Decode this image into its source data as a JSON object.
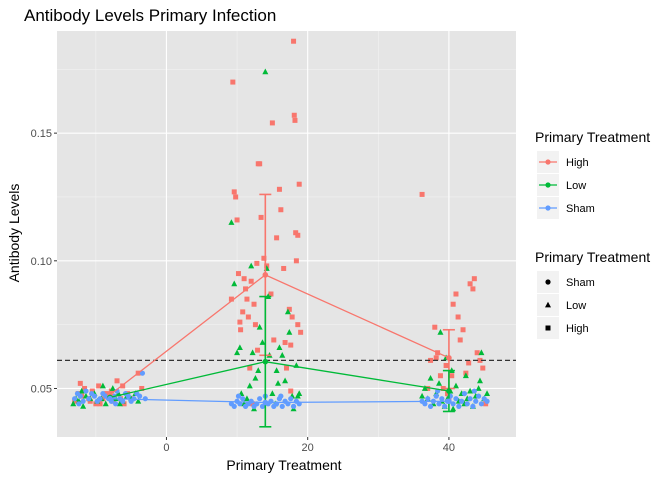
{
  "chart_data": {
    "type": "scatter",
    "title": "Antibody Levels Primary Infection",
    "xlabel": "Primary Treatment",
    "ylabel": "Antibody Levels",
    "xlim": [
      -15.5,
      49.5
    ],
    "ylim": [
      0.031,
      0.19
    ],
    "x_ticks": [
      0,
      20,
      40
    ],
    "y_ticks": [
      0.05,
      0.1,
      0.15
    ],
    "y_tick_labels": [
      "0.05",
      "0.10",
      "0.15"
    ],
    "grid": true,
    "background": "#e5e5e5",
    "reference_line": {
      "y": 0.061,
      "style": "dashed",
      "color": "#333333"
    },
    "legend_color": {
      "title": "Primary Treatment",
      "position": "right",
      "entries": [
        {
          "label": "High",
          "color": "#f8766d"
        },
        {
          "label": "Low",
          "color": "#00ba38"
        },
        {
          "label": "Sham",
          "color": "#619cff"
        }
      ]
    },
    "legend_shape": {
      "title": "Primary Treatment",
      "position": "right",
      "entries": [
        {
          "label": "Sham",
          "shape": "circle"
        },
        {
          "label": "Low",
          "shape": "triangle"
        },
        {
          "label": "High",
          "shape": "square"
        }
      ]
    },
    "series": [
      {
        "name": "High",
        "color": "#f8766d",
        "shape": "square",
        "x": [
          -8,
          14,
          40
        ],
        "mean": [
          0.0475,
          0.0945,
          0.062
        ],
        "error": [
          null,
          [
            0.063,
            0.126
          ],
          [
            0.05,
            0.073
          ]
        ]
      },
      {
        "name": "Low",
        "color": "#00ba38",
        "shape": "triangle",
        "x": [
          -8,
          14,
          40
        ],
        "mean": [
          0.0465,
          0.0605,
          0.049
        ],
        "error": [
          null,
          [
            0.035,
            0.086
          ],
          [
            0.041,
            0.057
          ]
        ]
      },
      {
        "name": "Sham",
        "color": "#619cff",
        "shape": "circle",
        "x": [
          -8,
          14,
          40
        ],
        "mean": [
          0.046,
          0.0445,
          0.045
        ],
        "error": [
          null,
          null,
          null
        ]
      }
    ],
    "points": {
      "High": [
        [
          -13,
          0.045
        ],
        [
          -12.5,
          0.048
        ],
        [
          -12,
          0.047
        ],
        [
          -11.6,
          0.05
        ],
        [
          -11,
          0.046
        ],
        [
          -10.5,
          0.049
        ],
        [
          -10,
          0.044
        ],
        [
          -9.6,
          0.051
        ],
        [
          -9,
          0.046
        ],
        [
          -8.5,
          0.048
        ],
        [
          -8,
          0.047
        ],
        [
          -7.5,
          0.045
        ],
        [
          -7,
          0.053
        ],
        [
          -6.5,
          0.046
        ],
        [
          -6,
          0.044
        ],
        [
          -5.5,
          0.048
        ],
        [
          -5,
          0.046
        ],
        [
          -4,
          0.056
        ],
        [
          -3.5,
          0.05
        ],
        [
          -12.2,
          0.052
        ],
        [
          -10.8,
          0.045
        ],
        [
          -9.4,
          0.044
        ],
        [
          -7.8,
          0.049
        ],
        [
          -6.2,
          0.051
        ],
        [
          9.2,
          0.085
        ],
        [
          9.4,
          0.17
        ],
        [
          9.6,
          0.127
        ],
        [
          9.8,
          0.125
        ],
        [
          10,
          0.116
        ],
        [
          10.2,
          0.095
        ],
        [
          10.4,
          0.076
        ],
        [
          10.5,
          0.073
        ],
        [
          10.8,
          0.08
        ],
        [
          11,
          0.093
        ],
        [
          11.2,
          0.089
        ],
        [
          11.4,
          0.085
        ],
        [
          11.6,
          0.078
        ],
        [
          11.8,
          0.058
        ],
        [
          12,
          0.092
        ],
        [
          12.4,
          0.083
        ],
        [
          12.6,
          0.075
        ],
        [
          12.8,
          0.099
        ],
        [
          13,
          0.138
        ],
        [
          13.2,
          0.138
        ],
        [
          13.4,
          0.117
        ],
        [
          13.8,
          0.101
        ],
        [
          14.2,
          0.098
        ],
        [
          14.8,
          0.087
        ],
        [
          15,
          0.154
        ],
        [
          15.2,
          0.069
        ],
        [
          15.6,
          0.109
        ],
        [
          16,
          0.128
        ],
        [
          16.2,
          0.12
        ],
        [
          16.6,
          0.097
        ],
        [
          16.8,
          0.068
        ],
        [
          17,
          0.058
        ],
        [
          17.4,
          0.081
        ],
        [
          17.6,
          0.067
        ],
        [
          17.8,
          0.078
        ],
        [
          18,
          0.186
        ],
        [
          18.1,
          0.157
        ],
        [
          18.2,
          0.155
        ],
        [
          18.3,
          0.111
        ],
        [
          18.4,
          0.1
        ],
        [
          18.6,
          0.11
        ],
        [
          18.8,
          0.13
        ],
        [
          18.6,
          0.075
        ],
        [
          19,
          0.072
        ],
        [
          12.2,
          0.044
        ],
        [
          17.6,
          0.049
        ],
        [
          12.9,
          0.065
        ],
        [
          36.2,
          0.126
        ],
        [
          37,
          0.05
        ],
        [
          37.4,
          0.061
        ],
        [
          38,
          0.074
        ],
        [
          38.4,
          0.064
        ],
        [
          38.8,
          0.055
        ],
        [
          39.2,
          0.05
        ],
        [
          39.6,
          0.059
        ],
        [
          40,
          0.046
        ],
        [
          40.4,
          0.055
        ],
        [
          40.6,
          0.083
        ],
        [
          41,
          0.087
        ],
        [
          41.3,
          0.078
        ],
        [
          41.6,
          0.069
        ],
        [
          42,
          0.073
        ],
        [
          42.4,
          0.056
        ],
        [
          42.8,
          0.06
        ],
        [
          43,
          0.091
        ],
        [
          43.4,
          0.089
        ],
        [
          43.6,
          0.093
        ],
        [
          44,
          0.064
        ],
        [
          44.4,
          0.061
        ],
        [
          44.8,
          0.058
        ],
        [
          45.2,
          0.044
        ],
        [
          38.2,
          0.062
        ],
        [
          39.8,
          0.048
        ]
      ],
      "Low": [
        [
          -13.2,
          0.044
        ],
        [
          -12.8,
          0.046
        ],
        [
          -12.4,
          0.045
        ],
        [
          -12,
          0.049
        ],
        [
          -11.4,
          0.047
        ],
        [
          -10.8,
          0.046
        ],
        [
          -10.2,
          0.048
        ],
        [
          -9.8,
          0.045
        ],
        [
          -9.2,
          0.046
        ],
        [
          -8.6,
          0.044
        ],
        [
          -8.2,
          0.047
        ],
        [
          -7.6,
          0.05
        ],
        [
          -7.2,
          0.046
        ],
        [
          -6.8,
          0.048
        ],
        [
          -6.2,
          0.045
        ],
        [
          -5.6,
          0.047
        ],
        [
          -5,
          0.046
        ],
        [
          -4.4,
          0.048
        ],
        [
          -4,
          0.045
        ],
        [
          -9,
          0.051
        ],
        [
          -11.8,
          0.043
        ],
        [
          -6.6,
          0.044
        ],
        [
          9.2,
          0.115
        ],
        [
          9.6,
          0.091
        ],
        [
          10,
          0.064
        ],
        [
          10.4,
          0.066
        ],
        [
          10.6,
          0.048
        ],
        [
          11,
          0.044
        ],
        [
          11.4,
          0.046
        ],
        [
          11.8,
          0.051
        ],
        [
          12,
          0.098
        ],
        [
          12.2,
          0.064
        ],
        [
          12.6,
          0.054
        ],
        [
          13,
          0.057
        ],
        [
          13.2,
          0.074
        ],
        [
          13.6,
          0.068
        ],
        [
          14,
          0.174
        ],
        [
          14.2,
          0.097
        ],
        [
          14.4,
          0.086
        ],
        [
          14.6,
          0.063
        ],
        [
          15,
          0.048
        ],
        [
          15.4,
          0.044
        ],
        [
          15.8,
          0.052
        ],
        [
          16,
          0.066
        ],
        [
          16.4,
          0.063
        ],
        [
          16.8,
          0.053
        ],
        [
          17.2,
          0.08
        ],
        [
          17.4,
          0.072
        ],
        [
          17.8,
          0.047
        ],
        [
          18,
          0.042
        ],
        [
          18.4,
          0.059
        ],
        [
          18.6,
          0.047
        ],
        [
          18.8,
          0.048
        ],
        [
          12.4,
          0.042
        ],
        [
          15.6,
          0.057
        ],
        [
          36.2,
          0.047
        ],
        [
          36.6,
          0.05
        ],
        [
          37,
          0.046
        ],
        [
          37.4,
          0.054
        ],
        [
          37.8,
          0.044
        ],
        [
          38.2,
          0.048
        ],
        [
          38.6,
          0.052
        ],
        [
          39,
          0.045
        ],
        [
          39.4,
          0.043
        ],
        [
          39.8,
          0.046
        ],
        [
          40.2,
          0.049
        ],
        [
          40.6,
          0.042
        ],
        [
          41,
          0.051
        ],
        [
          41.4,
          0.045
        ],
        [
          41.8,
          0.048
        ],
        [
          42.2,
          0.044
        ],
        [
          42.6,
          0.046
        ],
        [
          43,
          0.049
        ],
        [
          43.4,
          0.043
        ],
        [
          43.8,
          0.047
        ],
        [
          44.2,
          0.05
        ],
        [
          44.6,
          0.064
        ],
        [
          45,
          0.046
        ],
        [
          45.4,
          0.048
        ],
        [
          38.8,
          0.072
        ],
        [
          40.4,
          0.057
        ],
        [
          42.4,
          0.055
        ],
        [
          44.4,
          0.053
        ],
        [
          39.6,
          0.062
        ]
      ],
      "Sham": [
        [
          -13,
          0.046
        ],
        [
          -12.6,
          0.048
        ],
        [
          -12.2,
          0.047
        ],
        [
          -11.8,
          0.045
        ],
        [
          -11.4,
          0.049
        ],
        [
          -11,
          0.046
        ],
        [
          -10.6,
          0.048
        ],
        [
          -10.2,
          0.047
        ],
        [
          -9.8,
          0.045
        ],
        [
          -9.4,
          0.046
        ],
        [
          -9,
          0.048
        ],
        [
          -8.6,
          0.047
        ],
        [
          -8.2,
          0.046
        ],
        [
          -7.8,
          0.045
        ],
        [
          -7.4,
          0.047
        ],
        [
          -7,
          0.049
        ],
        [
          -6.6,
          0.046
        ],
        [
          -6.2,
          0.045
        ],
        [
          -5.8,
          0.048
        ],
        [
          -5.4,
          0.047
        ],
        [
          -5,
          0.045
        ],
        [
          -4.6,
          0.046
        ],
        [
          -4.2,
          0.048
        ],
        [
          -3.8,
          0.047
        ],
        [
          -3.4,
          0.056
        ],
        [
          -3,
          0.046
        ],
        [
          -12.4,
          0.044
        ],
        [
          -7.2,
          0.044
        ],
        [
          9.2,
          0.044
        ],
        [
          9.6,
          0.043
        ],
        [
          10,
          0.045
        ],
        [
          10.4,
          0.044
        ],
        [
          10.8,
          0.046
        ],
        [
          11.2,
          0.043
        ],
        [
          11.6,
          0.044
        ],
        [
          12,
          0.045
        ],
        [
          12.4,
          0.043
        ],
        [
          12.8,
          0.044
        ],
        [
          13.2,
          0.046
        ],
        [
          13.6,
          0.043
        ],
        [
          14,
          0.047
        ],
        [
          14.4,
          0.044
        ],
        [
          14.8,
          0.045
        ],
        [
          15.2,
          0.043
        ],
        [
          15.6,
          0.044
        ],
        [
          16,
          0.046
        ],
        [
          16.4,
          0.043
        ],
        [
          16.8,
          0.045
        ],
        [
          17.2,
          0.044
        ],
        [
          17.6,
          0.046
        ],
        [
          18,
          0.043
        ],
        [
          18.4,
          0.045
        ],
        [
          18.8,
          0.044
        ],
        [
          10.2,
          0.047
        ],
        [
          16.2,
          0.047
        ],
        [
          36.2,
          0.045
        ],
        [
          36.6,
          0.044
        ],
        [
          37,
          0.046
        ],
        [
          37.4,
          0.043
        ],
        [
          37.8,
          0.045
        ],
        [
          38.2,
          0.047
        ],
        [
          38.6,
          0.044
        ],
        [
          39,
          0.046
        ],
        [
          39.4,
          0.043
        ],
        [
          39.8,
          0.045
        ],
        [
          40.2,
          0.047
        ],
        [
          40.6,
          0.044
        ],
        [
          41,
          0.046
        ],
        [
          41.4,
          0.043
        ],
        [
          41.8,
          0.045
        ],
        [
          42.2,
          0.048
        ],
        [
          42.6,
          0.044
        ],
        [
          43,
          0.046
        ],
        [
          43.4,
          0.043
        ],
        [
          43.8,
          0.045
        ],
        [
          44.2,
          0.047
        ],
        [
          44.6,
          0.044
        ],
        [
          45,
          0.046
        ],
        [
          45.4,
          0.045
        ],
        [
          38.4,
          0.049
        ],
        [
          43.6,
          0.049
        ]
      ]
    }
  }
}
